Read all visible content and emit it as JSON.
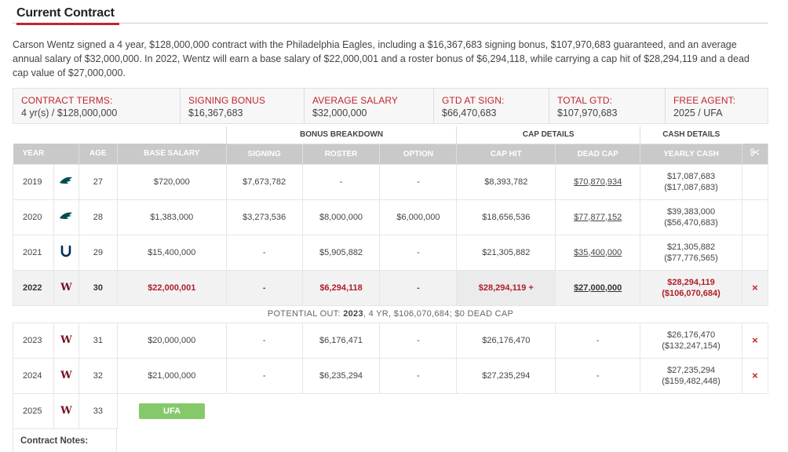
{
  "title": "Current Contract",
  "summary": "Carson Wentz signed a 4 year, $128,000,000 contract with the Philadelphia Eagles, including a $16,367,683 signing bonus, $107,970,683 guaranteed, and an average annual salary of $32,000,000. In 2022, Wentz will earn a base salary of $22,000,001 and a roster bonus of $6,294,118, while carrying a cap hit of $28,294,119 and a dead cap value of $27,000,000.",
  "terms": [
    {
      "label": "CONTRACT TERMS:",
      "value": "4 yr(s) / $128,000,000"
    },
    {
      "label": "SIGNING BONUS",
      "value": "$16,367,683"
    },
    {
      "label": "AVERAGE SALARY",
      "value": "$32,000,000"
    },
    {
      "label": "GTD AT SIGN:",
      "value": "$66,470,683"
    },
    {
      "label": "TOTAL GTD:",
      "value": "$107,970,683"
    },
    {
      "label": "FREE AGENT:",
      "value": "2025 / UFA"
    }
  ],
  "groups": {
    "bonus": "BONUS BREAKDOWN",
    "cap": "CAP DETAILS",
    "cash": "CASH DETAILS"
  },
  "headers": {
    "year": "YEAR",
    "age": "AGE",
    "base": "BASE SALARY",
    "signing": "SIGNING",
    "roster": "ROSTER",
    "option": "OPTION",
    "cap_hit": "CAP HIT",
    "dead_cap": "DEAD CAP",
    "yearly_cash": "YEARLY CASH",
    "tool_icon": "scissors-icon"
  },
  "rows": [
    {
      "year": "2019",
      "team": "eagles-logo-icon",
      "age": "27",
      "base": "$720,000",
      "signing": "$7,673,782",
      "roster": "-",
      "option": "-",
      "cap_hit": "$8,393,782",
      "dead_cap": "$70,870,934",
      "cash": "$17,087,683",
      "cash_cum": "($17,087,683)"
    },
    {
      "year": "2020",
      "team": "eagles-logo-icon",
      "age": "28",
      "base": "$1,383,000",
      "signing": "$3,273,536",
      "roster": "$8,000,000",
      "option": "$6,000,000",
      "cap_hit": "$18,656,536",
      "dead_cap": "$77,877,152",
      "cash": "$39,383,000",
      "cash_cum": "($56,470,683)"
    },
    {
      "year": "2021",
      "team": "colts-logo-icon",
      "age": "29",
      "base": "$15,400,000",
      "signing": "-",
      "roster": "$5,905,882",
      "option": "-",
      "cap_hit": "$21,305,882",
      "dead_cap": "$35,400,000",
      "cash": "$21,305,882",
      "cash_cum": "($77,776,565)"
    },
    {
      "year": "2022",
      "team": "washington-logo-icon",
      "age": "30",
      "base": "$22,000,001",
      "signing": "-",
      "roster": "$6,294,118",
      "option": "-",
      "cap_hit": "$28,294,119",
      "dead_cap": "$27,000,000",
      "cash": "$28,294,119",
      "cash_cum": "($106,070,684)"
    }
  ],
  "potential_out": {
    "prefix": "POTENTIAL OUT:",
    "year": "2023",
    "rest": ", 4 YR, $106,070,684; $0 DEAD CAP"
  },
  "future_rows": [
    {
      "year": "2023",
      "team": "washington-logo-icon",
      "age": "31",
      "base": "$20,000,000",
      "signing": "-",
      "roster": "$6,176,471",
      "option": "-",
      "cap_hit": "$26,176,470",
      "dead_cap": "-",
      "cash": "$26,176,470",
      "cash_cum": "($132,247,154)"
    },
    {
      "year": "2024",
      "team": "washington-logo-icon",
      "age": "32",
      "base": "$21,000,000",
      "signing": "-",
      "roster": "$6,235,294",
      "option": "-",
      "cap_hit": "$27,235,294",
      "dead_cap": "-",
      "cash": "$27,235,294",
      "cash_cum": "($159,482,448)"
    }
  ],
  "ufa_row": {
    "year": "2025",
    "team": "washington-logo-icon",
    "age": "33",
    "badge": "UFA"
  },
  "team_logo_letter": "W",
  "cut_mark": "×",
  "cap_plus": "+",
  "notes_label": "Contract Notes:",
  "colors": {
    "accent": "#c1252f",
    "header_bg": "#c9c9c9",
    "ufa": "#86c96b",
    "washington": "#7a1324",
    "eagles": "#004c54",
    "colts": "#002c5f"
  }
}
